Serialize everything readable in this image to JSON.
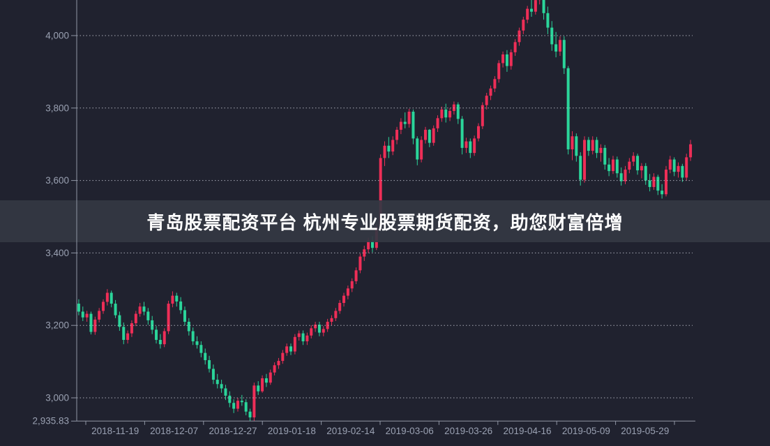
{
  "banner": {
    "text": "青岛股票配资平台 杭州专业股票期货配资，助您财富倍增"
  },
  "chart_data": {
    "type": "candlestick",
    "title": "",
    "xlabel": "",
    "ylabel": "",
    "grid": "dashed horizontal gridlines",
    "legend": "none",
    "ylim": [
      2935.83,
      4098
    ],
    "y_axis": {
      "tick_labels": [
        "4,000",
        "3,800",
        "3,600",
        "3,400",
        "3,200",
        "3,000"
      ],
      "tick_values": [
        4000,
        3800,
        3600,
        3400,
        3200,
        3000
      ],
      "min_label": "2,935.83",
      "min_value": 2935.83
    },
    "x_axis": {
      "labels": [
        "2018-11-19",
        "2018-12-07",
        "2018-12-27",
        "2019-01-18",
        "2019-02-14",
        "2019-03-06",
        "2019-03-26",
        "2019-04-16",
        "2019-05-09",
        "2019-05-29"
      ]
    },
    "colors": {
      "up": "#ee2e57",
      "down": "#2bd59a",
      "background": "#20222f",
      "banner_background": "rgba(52,56,67,0.92)",
      "axis_line": "#8f95a4",
      "gridline": "#c9cdd8",
      "tick_label": "#9aa1b2"
    },
    "candles_format": [
      "open",
      "high",
      "low",
      "close"
    ],
    "candles": [
      [
        3260,
        3272,
        3228,
        3238
      ],
      [
        3238,
        3252,
        3212,
        3222
      ],
      [
        3222,
        3240,
        3210,
        3232
      ],
      [
        3232,
        3238,
        3175,
        3182
      ],
      [
        3182,
        3224,
        3174,
        3216
      ],
      [
        3216,
        3248,
        3208,
        3240
      ],
      [
        3240,
        3272,
        3232,
        3265
      ],
      [
        3265,
        3300,
        3255,
        3290
      ],
      [
        3290,
        3296,
        3250,
        3260
      ],
      [
        3260,
        3270,
        3220,
        3228
      ],
      [
        3228,
        3238,
        3185,
        3196
      ],
      [
        3196,
        3208,
        3148,
        3160
      ],
      [
        3160,
        3186,
        3150,
        3178
      ],
      [
        3178,
        3214,
        3168,
        3206
      ],
      [
        3206,
        3240,
        3198,
        3232
      ],
      [
        3232,
        3262,
        3224,
        3252
      ],
      [
        3252,
        3265,
        3228,
        3238
      ],
      [
        3238,
        3248,
        3202,
        3214
      ],
      [
        3214,
        3226,
        3176,
        3188
      ],
      [
        3188,
        3198,
        3150,
        3160
      ],
      [
        3160,
        3176,
        3136,
        3148
      ],
      [
        3148,
        3192,
        3140,
        3184
      ],
      [
        3184,
        3268,
        3176,
        3260
      ],
      [
        3260,
        3294,
        3250,
        3282
      ],
      [
        3282,
        3290,
        3252,
        3266
      ],
      [
        3266,
        3278,
        3232,
        3242
      ],
      [
        3242,
        3252,
        3200,
        3210
      ],
      [
        3210,
        3220,
        3172,
        3184
      ],
      [
        3184,
        3194,
        3146,
        3156
      ],
      [
        3156,
        3170,
        3136,
        3146
      ],
      [
        3146,
        3156,
        3112,
        3124
      ],
      [
        3124,
        3136,
        3092,
        3104
      ],
      [
        3104,
        3116,
        3070,
        3080
      ],
      [
        3080,
        3092,
        3038,
        3050
      ],
      [
        3050,
        3066,
        3026,
        3038
      ],
      [
        3038,
        3050,
        3014,
        3026
      ],
      [
        3026,
        3036,
        2994,
        3006
      ],
      [
        3006,
        3018,
        2974,
        2986
      ],
      [
        2986,
        2996,
        2958,
        2970
      ],
      [
        2970,
        3000,
        2962,
        2992
      ],
      [
        2992,
        3008,
        2978,
        2988
      ],
      [
        2988,
        2996,
        2952,
        2962
      ],
      [
        2962,
        2970,
        2936,
        2946
      ],
      [
        2946,
        3042,
        2935.83,
        3034
      ],
      [
        3034,
        3046,
        3008,
        3018
      ],
      [
        3018,
        3062,
        3014,
        3054
      ],
      [
        3054,
        3066,
        3030,
        3042
      ],
      [
        3042,
        3078,
        3036,
        3070
      ],
      [
        3070,
        3098,
        3062,
        3090
      ],
      [
        3090,
        3110,
        3080,
        3102
      ],
      [
        3102,
        3132,
        3094,
        3124
      ],
      [
        3124,
        3150,
        3116,
        3142
      ],
      [
        3142,
        3150,
        3118,
        3128
      ],
      [
        3128,
        3176,
        3120,
        3168
      ],
      [
        3168,
        3186,
        3158,
        3178
      ],
      [
        3178,
        3186,
        3146,
        3156
      ],
      [
        3156,
        3180,
        3146,
        3172
      ],
      [
        3172,
        3200,
        3164,
        3192
      ],
      [
        3192,
        3210,
        3182,
        3202
      ],
      [
        3202,
        3210,
        3170,
        3180
      ],
      [
        3180,
        3198,
        3170,
        3190
      ],
      [
        3190,
        3218,
        3182,
        3210
      ],
      [
        3210,
        3228,
        3200,
        3220
      ],
      [
        3220,
        3248,
        3212,
        3240
      ],
      [
        3240,
        3270,
        3232,
        3262
      ],
      [
        3262,
        3290,
        3252,
        3282
      ],
      [
        3282,
        3310,
        3272,
        3302
      ],
      [
        3302,
        3330,
        3292,
        3322
      ],
      [
        3322,
        3360,
        3314,
        3352
      ],
      [
        3352,
        3398,
        3344,
        3390
      ],
      [
        3390,
        3420,
        3378,
        3410
      ],
      [
        3410,
        3442,
        3400,
        3434
      ],
      [
        3434,
        3446,
        3402,
        3414
      ],
      [
        3414,
        3478,
        3408,
        3470
      ],
      [
        3470,
        3672,
        3464,
        3662
      ],
      [
        3662,
        3708,
        3640,
        3696
      ],
      [
        3696,
        3720,
        3662,
        3680
      ],
      [
        3680,
        3722,
        3670,
        3712
      ],
      [
        3712,
        3748,
        3700,
        3740
      ],
      [
        3740,
        3772,
        3728,
        3762
      ],
      [
        3762,
        3788,
        3744,
        3756
      ],
      [
        3756,
        3798,
        3746,
        3790
      ],
      [
        3790,
        3796,
        3700,
        3716
      ],
      [
        3716,
        3722,
        3642,
        3658
      ],
      [
        3658,
        3722,
        3650,
        3712
      ],
      [
        3712,
        3748,
        3702,
        3740
      ],
      [
        3740,
        3742,
        3692,
        3704
      ],
      [
        3704,
        3752,
        3696,
        3744
      ],
      [
        3744,
        3780,
        3734,
        3772
      ],
      [
        3772,
        3804,
        3762,
        3796
      ],
      [
        3796,
        3812,
        3760,
        3774
      ],
      [
        3774,
        3800,
        3764,
        3792
      ],
      [
        3792,
        3818,
        3782,
        3810
      ],
      [
        3810,
        3816,
        3756,
        3770
      ],
      [
        3770,
        3778,
        3672,
        3690
      ],
      [
        3690,
        3718,
        3676,
        3708
      ],
      [
        3708,
        3716,
        3662,
        3676
      ],
      [
        3676,
        3724,
        3668,
        3716
      ],
      [
        3716,
        3758,
        3708,
        3750
      ],
      [
        3750,
        3816,
        3742,
        3808
      ],
      [
        3808,
        3842,
        3796,
        3834
      ],
      [
        3834,
        3862,
        3822,
        3854
      ],
      [
        3854,
        3888,
        3844,
        3880
      ],
      [
        3880,
        3932,
        3870,
        3924
      ],
      [
        3924,
        3956,
        3912,
        3948
      ],
      [
        3948,
        3960,
        3900,
        3916
      ],
      [
        3916,
        3962,
        3906,
        3954
      ],
      [
        3954,
        3990,
        3944,
        3982
      ],
      [
        3982,
        4022,
        3972,
        4014
      ],
      [
        4014,
        4052,
        4004,
        4044
      ],
      [
        4044,
        4082,
        4034,
        4074
      ],
      [
        4074,
        4106,
        4052,
        4066
      ],
      [
        4066,
        4108,
        4058,
        4098
      ],
      [
        4098,
        4126,
        4086,
        4118
      ],
      [
        4118,
        4124,
        4044,
        4062
      ],
      [
        4062,
        4080,
        4004,
        4022
      ],
      [
        4022,
        4040,
        3958,
        3976
      ],
      [
        3976,
        4010,
        3940,
        3956
      ],
      [
        3956,
        3998,
        3944,
        3988
      ],
      [
        3988,
        3998,
        3894,
        3910
      ],
      [
        3910,
        3916,
        3672,
        3686
      ],
      [
        3686,
        3736,
        3656,
        3722
      ],
      [
        3722,
        3730,
        3652,
        3668
      ],
      [
        3668,
        3678,
        3586,
        3602
      ],
      [
        3602,
        3722,
        3594,
        3712
      ],
      [
        3712,
        3720,
        3668,
        3682
      ],
      [
        3682,
        3722,
        3672,
        3712
      ],
      [
        3712,
        3720,
        3662,
        3676
      ],
      [
        3676,
        3700,
        3652,
        3690
      ],
      [
        3690,
        3698,
        3630,
        3644
      ],
      [
        3644,
        3662,
        3612,
        3626
      ],
      [
        3626,
        3668,
        3618,
        3658
      ],
      [
        3658,
        3666,
        3608,
        3620
      ],
      [
        3620,
        3636,
        3586,
        3598
      ],
      [
        3598,
        3640,
        3590,
        3630
      ],
      [
        3630,
        3662,
        3620,
        3652
      ],
      [
        3652,
        3678,
        3640,
        3668
      ],
      [
        3668,
        3674,
        3616,
        3628
      ],
      [
        3628,
        3648,
        3606,
        3640
      ],
      [
        3640,
        3648,
        3588,
        3600
      ],
      [
        3600,
        3618,
        3570,
        3582
      ],
      [
        3582,
        3620,
        3574,
        3610
      ],
      [
        3610,
        3616,
        3560,
        3572
      ],
      [
        3572,
        3590,
        3550,
        3562
      ],
      [
        3562,
        3640,
        3556,
        3630
      ],
      [
        3630,
        3668,
        3620,
        3658
      ],
      [
        3658,
        3664,
        3612,
        3624
      ],
      [
        3624,
        3650,
        3608,
        3640
      ],
      [
        3640,
        3646,
        3596,
        3608
      ],
      [
        3608,
        3674,
        3600,
        3664
      ],
      [
        3664,
        3712,
        3654,
        3700
      ]
    ]
  }
}
